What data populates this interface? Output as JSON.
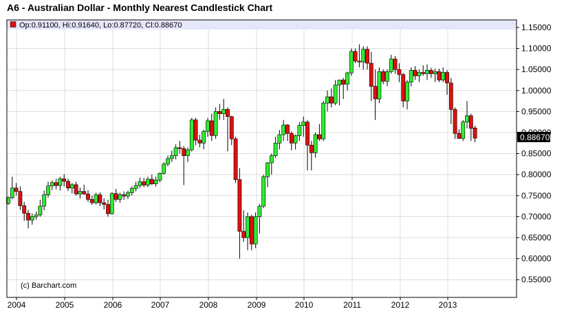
{
  "chart_title": "A6 - Australian Dollar - Monthly Nearest Candlestick Chart",
  "info_bar": "Op:0.91100, Hi:0.91640, Lo:0.87720, Cl:0.88670",
  "copyright": "(c) Barchart.com",
  "last_price_label": "0.88670",
  "colors": {
    "up": "#33e833",
    "down": "#dd1111",
    "grid": "#dcdcdc",
    "last_bg": "#000000",
    "info_bg": "#e6e6fa"
  },
  "chart_data": {
    "type": "candlestick",
    "title": "A6 - Australian Dollar - Monthly Nearest Candlestick Chart",
    "ylim": [
      0.51,
      1.165
    ],
    "y_ticks": [
      "1.15000",
      "1.10000",
      "1.05000",
      "1.00000",
      "0.95000",
      "0.90000",
      "0.85000",
      "0.80000",
      "0.75000",
      "0.70000",
      "0.65000",
      "0.60000",
      "0.55000"
    ],
    "y_tick_values": [
      1.15,
      1.1,
      1.05,
      1.0,
      0.95,
      0.9,
      0.85,
      0.8,
      0.75,
      0.7,
      0.65,
      0.6,
      0.55
    ],
    "x_ticks": [
      "2004",
      "2005",
      "2006",
      "2007",
      "2008",
      "2009",
      "2010",
      "2011",
      "2012",
      "2013"
    ],
    "last": {
      "open": 0.911,
      "high": 0.9164,
      "low": 0.8772,
      "close": 0.8867
    },
    "series_ohlc": [
      [
        0.731,
        0.748,
        0.728,
        0.745
      ],
      [
        0.745,
        0.795,
        0.741,
        0.768
      ],
      [
        0.768,
        0.78,
        0.75,
        0.76
      ],
      [
        0.76,
        0.772,
        0.716,
        0.726
      ],
      [
        0.726,
        0.735,
        0.69,
        0.708
      ],
      [
        0.708,
        0.716,
        0.672,
        0.692
      ],
      [
        0.692,
        0.708,
        0.681,
        0.7
      ],
      [
        0.7,
        0.712,
        0.693,
        0.704
      ],
      [
        0.704,
        0.74,
        0.7,
        0.725
      ],
      [
        0.725,
        0.762,
        0.715,
        0.752
      ],
      [
        0.752,
        0.783,
        0.745,
        0.773
      ],
      [
        0.773,
        0.786,
        0.763,
        0.781
      ],
      [
        0.781,
        0.79,
        0.765,
        0.774
      ],
      [
        0.774,
        0.795,
        0.762,
        0.79
      ],
      [
        0.79,
        0.801,
        0.772,
        0.784
      ],
      [
        0.784,
        0.79,
        0.761,
        0.768
      ],
      [
        0.768,
        0.78,
        0.755,
        0.776
      ],
      [
        0.776,
        0.783,
        0.75,
        0.754
      ],
      [
        0.754,
        0.769,
        0.743,
        0.76
      ],
      [
        0.76,
        0.776,
        0.752,
        0.754
      ],
      [
        0.754,
        0.763,
        0.735,
        0.741
      ],
      [
        0.741,
        0.75,
        0.728,
        0.733
      ],
      [
        0.733,
        0.757,
        0.729,
        0.752
      ],
      [
        0.752,
        0.758,
        0.725,
        0.733
      ],
      [
        0.733,
        0.744,
        0.717,
        0.729
      ],
      [
        0.729,
        0.74,
        0.7,
        0.707
      ],
      [
        0.707,
        0.758,
        0.705,
        0.755
      ],
      [
        0.755,
        0.766,
        0.735,
        0.741
      ],
      [
        0.741,
        0.757,
        0.733,
        0.752
      ],
      [
        0.752,
        0.76,
        0.74,
        0.749
      ],
      [
        0.749,
        0.762,
        0.742,
        0.757
      ],
      [
        0.757,
        0.772,
        0.75,
        0.767
      ],
      [
        0.767,
        0.783,
        0.76,
        0.774
      ],
      [
        0.774,
        0.793,
        0.768,
        0.783
      ],
      [
        0.783,
        0.792,
        0.77,
        0.775
      ],
      [
        0.775,
        0.795,
        0.77,
        0.789
      ],
      [
        0.789,
        0.8,
        0.775,
        0.778
      ],
      [
        0.778,
        0.795,
        0.772,
        0.787
      ],
      [
        0.787,
        0.805,
        0.782,
        0.803
      ],
      [
        0.803,
        0.83,
        0.8,
        0.825
      ],
      [
        0.825,
        0.845,
        0.82,
        0.838
      ],
      [
        0.838,
        0.857,
        0.83,
        0.845
      ],
      [
        0.845,
        0.872,
        0.836,
        0.864
      ],
      [
        0.864,
        0.88,
        0.85,
        0.862
      ],
      [
        0.862,
        0.868,
        0.775,
        0.845
      ],
      [
        0.845,
        0.865,
        0.83,
        0.859
      ],
      [
        0.859,
        0.935,
        0.855,
        0.93
      ],
      [
        0.93,
        0.935,
        0.87,
        0.882
      ],
      [
        0.882,
        0.895,
        0.865,
        0.875
      ],
      [
        0.875,
        0.907,
        0.86,
        0.903
      ],
      [
        0.903,
        0.935,
        0.89,
        0.928
      ],
      [
        0.928,
        0.945,
        0.88,
        0.893
      ],
      [
        0.893,
        0.96,
        0.885,
        0.95
      ],
      [
        0.95,
        0.968,
        0.93,
        0.945
      ],
      [
        0.945,
        0.98,
        0.93,
        0.955
      ],
      [
        0.955,
        0.96,
        0.855,
        0.938
      ],
      [
        0.938,
        0.94,
        0.87,
        0.885
      ],
      [
        0.885,
        0.89,
        0.78,
        0.788
      ],
      [
        0.788,
        0.815,
        0.6,
        0.665
      ],
      [
        0.665,
        0.715,
        0.64,
        0.65
      ],
      [
        0.65,
        0.71,
        0.62,
        0.7
      ],
      [
        0.7,
        0.705,
        0.62,
        0.635
      ],
      [
        0.635,
        0.71,
        0.625,
        0.7
      ],
      [
        0.7,
        0.73,
        0.66,
        0.725
      ],
      [
        0.725,
        0.8,
        0.72,
        0.795
      ],
      [
        0.795,
        0.83,
        0.77,
        0.828
      ],
      [
        0.828,
        0.85,
        0.8,
        0.845
      ],
      [
        0.845,
        0.89,
        0.84,
        0.875
      ],
      [
        0.875,
        0.906,
        0.86,
        0.895
      ],
      [
        0.895,
        0.93,
        0.88,
        0.918
      ],
      [
        0.918,
        0.92,
        0.88,
        0.898
      ],
      [
        0.898,
        0.903,
        0.858,
        0.875
      ],
      [
        0.875,
        0.895,
        0.86,
        0.893
      ],
      [
        0.893,
        0.925,
        0.88,
        0.917
      ],
      [
        0.917,
        0.938,
        0.89,
        0.925
      ],
      [
        0.925,
        0.93,
        0.81,
        0.87
      ],
      [
        0.87,
        0.88,
        0.81,
        0.852
      ],
      [
        0.852,
        0.9,
        0.84,
        0.895
      ],
      [
        0.895,
        0.92,
        0.88,
        0.885
      ],
      [
        0.885,
        0.975,
        0.88,
        0.97
      ],
      [
        0.97,
        1.0,
        0.95,
        0.985
      ],
      [
        0.985,
        1.005,
        0.96,
        0.97
      ],
      [
        0.97,
        1.025,
        0.965,
        1.013
      ],
      [
        1.013,
        1.02,
        0.965,
        1.025
      ],
      [
        1.025,
        1.03,
        0.98,
        1.015
      ],
      [
        1.015,
        1.045,
        1.0,
        1.042
      ],
      [
        1.042,
        1.1,
        1.035,
        1.093
      ],
      [
        1.093,
        1.1,
        1.065,
        1.07
      ],
      [
        1.07,
        1.11,
        1.055,
        1.068
      ],
      [
        1.068,
        1.105,
        1.05,
        1.098
      ],
      [
        1.098,
        1.105,
        1.05,
        1.065
      ],
      [
        1.065,
        1.092,
        0.975,
        1.01
      ],
      [
        1.01,
        1.05,
        0.93,
        0.98
      ],
      [
        0.98,
        1.055,
        0.97,
        1.045
      ],
      [
        1.045,
        1.05,
        1.015,
        1.022
      ],
      [
        1.022,
        1.05,
        1.01,
        1.045
      ],
      [
        1.045,
        1.085,
        1.04,
        1.075
      ],
      [
        1.075,
        1.082,
        1.04,
        1.05
      ],
      [
        1.05,
        1.065,
        1.02,
        1.038
      ],
      [
        1.038,
        1.042,
        0.96,
        0.975
      ],
      [
        0.975,
        1.025,
        0.955,
        1.02
      ],
      [
        1.02,
        1.055,
        1.01,
        1.048
      ],
      [
        1.048,
        1.058,
        1.025,
        1.035
      ],
      [
        1.035,
        1.05,
        1.02,
        1.043
      ],
      [
        1.043,
        1.06,
        1.035,
        1.04
      ],
      [
        1.04,
        1.062,
        1.025,
        1.048
      ],
      [
        1.048,
        1.054,
        1.03,
        1.04
      ],
      [
        1.04,
        1.052,
        1.02,
        1.045
      ],
      [
        1.045,
        1.052,
        1.02,
        1.025
      ],
      [
        1.025,
        1.055,
        1.02,
        1.043
      ],
      [
        1.043,
        1.048,
        0.99,
        1.018
      ],
      [
        1.018,
        1.03,
        0.92,
        0.955
      ],
      [
        0.955,
        0.96,
        0.885,
        0.898
      ],
      [
        0.898,
        0.908,
        0.885,
        0.886
      ],
      [
        0.886,
        0.93,
        0.88,
        0.925
      ],
      [
        0.925,
        0.975,
        0.91,
        0.94
      ],
      [
        0.94,
        0.945,
        0.88,
        0.91
      ],
      [
        0.911,
        0.9164,
        0.8772,
        0.8867
      ]
    ]
  }
}
